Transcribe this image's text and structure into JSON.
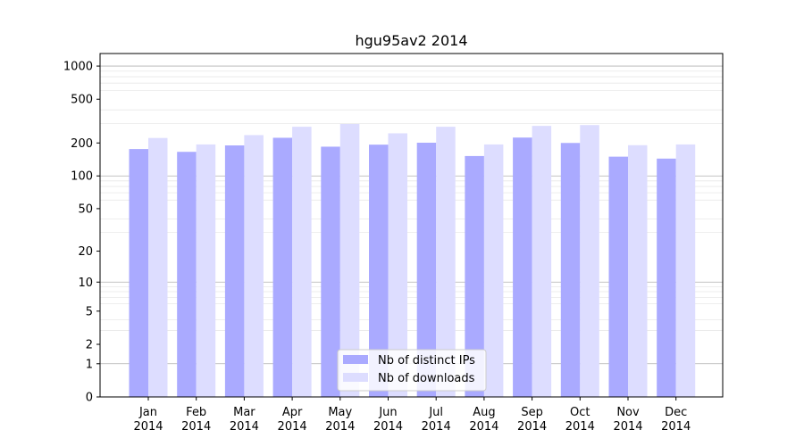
{
  "chart_data": {
    "type": "bar",
    "title": "hgu95av2 2014",
    "xlabel": "",
    "ylabel": "",
    "y_scale": "log(1+y)",
    "ylim": [
      0,
      1300
    ],
    "y_ticks": [
      0,
      1,
      2,
      5,
      10,
      20,
      50,
      100,
      200,
      500,
      1000
    ],
    "categories": [
      [
        "Jan",
        "2014"
      ],
      [
        "Feb",
        "2014"
      ],
      [
        "Mar",
        "2014"
      ],
      [
        "Apr",
        "2014"
      ],
      [
        "May",
        "2014"
      ],
      [
        "Jun",
        "2014"
      ],
      [
        "Jul",
        "2014"
      ],
      [
        "Aug",
        "2014"
      ],
      [
        "Sep",
        "2014"
      ],
      [
        "Oct",
        "2014"
      ],
      [
        "Nov",
        "2014"
      ],
      [
        "Dec",
        "2014"
      ]
    ],
    "series": [
      {
        "name": "Nb of distinct IPs",
        "color": "#aaaaff",
        "values": [
          176,
          166,
          190,
          223,
          185,
          193,
          201,
          152,
          224,
          200,
          150,
          144
        ]
      },
      {
        "name": "Nb of downloads",
        "color": "#ddddff",
        "values": [
          222,
          194,
          236,
          281,
          298,
          245,
          281,
          194,
          286,
          291,
          191,
          194
        ]
      }
    ],
    "legend": "bottom-center",
    "grid": true
  }
}
